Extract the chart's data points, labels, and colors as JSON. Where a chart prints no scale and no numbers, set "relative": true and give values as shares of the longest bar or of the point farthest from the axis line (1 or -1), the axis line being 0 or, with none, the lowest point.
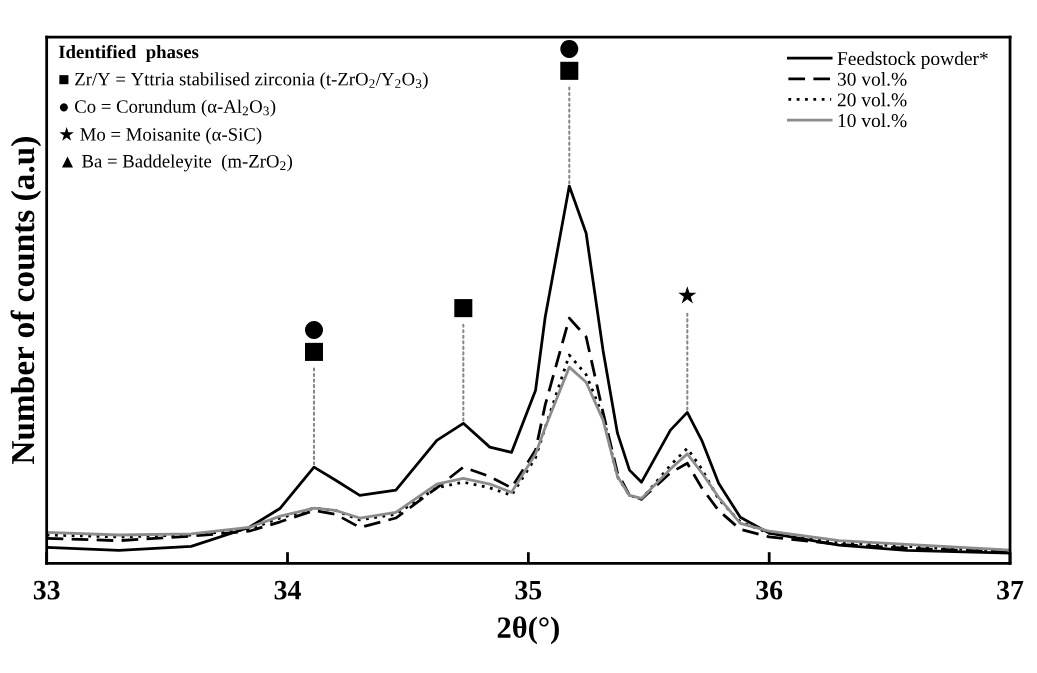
{
  "chart_data": {
    "type": "line",
    "relative": true,
    "xlabel": "2θ(°)",
    "ylabel": "Number of counts (a.u)",
    "xlim": [
      33,
      37
    ],
    "xticks": [
      33,
      34,
      35,
      36,
      37
    ],
    "legend": "top right",
    "x": [
      33.0,
      33.3,
      33.6,
      33.84,
      33.97,
      34.11,
      34.2,
      34.3,
      34.45,
      34.62,
      34.73,
      34.84,
      34.93,
      35.03,
      35.07,
      35.17,
      35.24,
      35.31,
      35.37,
      35.42,
      35.47,
      35.59,
      35.66,
      35.72,
      35.79,
      35.88,
      36.0,
      36.29,
      36.57,
      37.0
    ],
    "series": [
      {
        "name": "Feedstock powder*",
        "color": "#000000",
        "line_style": "solid",
        "values": [
          0.042,
          0.034,
          0.045,
          0.095,
          0.146,
          0.255,
          0.22,
          0.18,
          0.194,
          0.326,
          0.371,
          0.308,
          0.294,
          0.459,
          0.653,
          1.0,
          0.875,
          0.565,
          0.345,
          0.247,
          0.215,
          0.353,
          0.4,
          0.326,
          0.212,
          0.122,
          0.08,
          0.048,
          0.034,
          0.027
        ]
      },
      {
        "name": "30 vol.%",
        "color": "#000000",
        "line_style": "dashed",
        "values": [
          0.066,
          0.06,
          0.072,
          0.085,
          0.11,
          0.14,
          0.13,
          0.095,
          0.12,
          0.2,
          0.255,
          0.23,
          0.2,
          0.3,
          0.42,
          0.65,
          0.6,
          0.4,
          0.24,
          0.18,
          0.17,
          0.24,
          0.265,
          0.2,
          0.14,
          0.09,
          0.07,
          0.05,
          0.04,
          0.03
        ]
      },
      {
        "name": "20 vol.%",
        "color": "#000000",
        "line_style": "dotted",
        "values": [
          0.075,
          0.07,
          0.075,
          0.09,
          0.12,
          0.146,
          0.14,
          0.115,
          0.13,
          0.2,
          0.215,
          0.2,
          0.18,
          0.28,
          0.36,
          0.552,
          0.5,
          0.39,
          0.23,
          0.18,
          0.17,
          0.26,
          0.305,
          0.25,
          0.17,
          0.11,
          0.08,
          0.055,
          0.045,
          0.03
        ]
      },
      {
        "name": "10 vol.%",
        "color": "#8c8c8c",
        "line_style": "solid",
        "values": [
          0.082,
          0.075,
          0.078,
          0.095,
          0.125,
          0.146,
          0.14,
          0.12,
          0.135,
          0.21,
          0.225,
          0.21,
          0.188,
          0.29,
          0.36,
          0.52,
          0.48,
          0.38,
          0.23,
          0.18,
          0.172,
          0.25,
          0.29,
          0.24,
          0.175,
          0.106,
          0.085,
          0.06,
          0.05,
          0.035
        ]
      }
    ],
    "annotations": [
      "Identified  phases",
      "■ Zr/Y = Yttria stabilised zirconia (t-ZrO$_{2}$/Y$_{2}$O$_{3}$)",
      "● Co = Corundum (α-Al$_{2}$O$_{3}$)",
      "★ Mo = Moisanite (α-SiC)",
      "▲ Ba = Baddeleyite  (m-ZrO$_{2}$)",
      {
        "text": "●\n■",
        "x": 34.11,
        "y": 0.255
      },
      {
        "text": "■",
        "x": 34.73,
        "y": 0.371
      },
      {
        "text": "●\n■",
        "x": 35.17,
        "y": 1.0
      },
      {
        "text": "★",
        "x": 35.66,
        "y": 0.4
      }
    ]
  }
}
